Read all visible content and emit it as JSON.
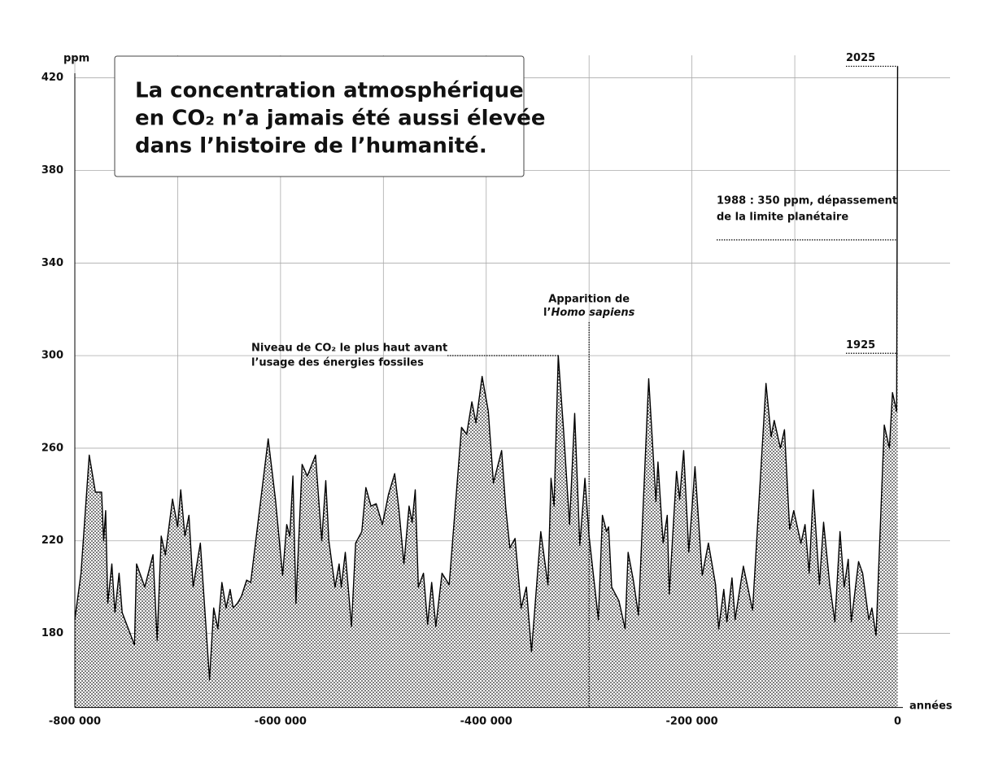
{
  "chart_data": {
    "type": "area",
    "title": [
      "La concentration atmosphérique",
      "en CO₂ n’a jamais été aussi élevée",
      "dans l’histoire de l’humanité."
    ],
    "y_label": "ppm",
    "x_label": "années",
    "color": "#000000",
    "x": [
      -800000,
      -794000,
      -786000,
      -780000,
      -774000,
      -772000,
      -770000,
      -768000,
      -764000,
      -761000,
      -757000,
      -754000,
      -742000,
      -740000,
      -732000,
      -724000,
      -720000,
      -716000,
      -712000,
      -705000,
      -700000,
      -697000,
      -693000,
      -689000,
      -685000,
      -678000,
      -669000,
      -665000,
      -661000,
      -657000,
      -653000,
      -649000,
      -646000,
      -642000,
      -638000,
      -633000,
      -629000,
      -612000,
      -605000,
      -598000,
      -594000,
      -591000,
      -588000,
      -585000,
      -579000,
      -574000,
      -566000,
      -560000,
      -556000,
      -553000,
      -547000,
      -543000,
      -541000,
      -537000,
      -531000,
      -527000,
      -521000,
      -517000,
      -512000,
      -507000,
      -501000,
      -495000,
      -489000,
      -485000,
      -480000,
      -475000,
      -472000,
      -469000,
      -466000,
      -461000,
      -457000,
      -453000,
      -449000,
      -443000,
      -436000,
      -424000,
      -419000,
      -414000,
      -410000,
      -404000,
      -398000,
      -393000,
      -385000,
      -381000,
      -377000,
      -372000,
      -366000,
      -361000,
      -356000,
      -347000,
      -340000,
      -337000,
      -334000,
      -330000,
      -325000,
      -319000,
      -314000,
      -309000,
      -304000,
      -300000,
      -291000,
      -287000,
      -283000,
      -281000,
      -278000,
      -271000,
      -265000,
      -262000,
      -257000,
      -252000,
      -242000,
      -235000,
      -233000,
      -228000,
      -224000,
      -222000,
      -215000,
      -212000,
      -208000,
      -203000,
      -197000,
      -190000,
      -184000,
      -177000,
      -174000,
      -169000,
      -166000,
      -161000,
      -158000,
      -150000,
      -141000,
      -128000,
      -123000,
      -120000,
      -114000,
      -110000,
      -105000,
      -101000,
      -94000,
      -90000,
      -86000,
      -82000,
      -76000,
      -72000,
      -66000,
      -61000,
      -56000,
      -52000,
      -48000,
      -45000,
      -38000,
      -34000,
      -28000,
      -25000,
      -21000,
      -13000,
      -8000,
      -5000,
      -1000,
      0
    ],
    "values": [
      186,
      206,
      257,
      241,
      241,
      220,
      233,
      193,
      210,
      189,
      206,
      189,
      175,
      210,
      200,
      214,
      177,
      222,
      214,
      238,
      226,
      242,
      222,
      231,
      200,
      219,
      160,
      191,
      182,
      202,
      191,
      199,
      191,
      193,
      196,
      203,
      202,
      264,
      238,
      205,
      227,
      222,
      248,
      193,
      253,
      248,
      257,
      220,
      246,
      220,
      200,
      210,
      200,
      215,
      183,
      219,
      224,
      243,
      235,
      236,
      227,
      240,
      249,
      234,
      210,
      235,
      228,
      242,
      200,
      206,
      184,
      202,
      183,
      206,
      201,
      269,
      266,
      280,
      271,
      291,
      276,
      245,
      259,
      234,
      217,
      221,
      191,
      200,
      172,
      224,
      201,
      247,
      235,
      300,
      269,
      227,
      275,
      218,
      247,
      222,
      186,
      231,
      224,
      226,
      200,
      194,
      182,
      215,
      203,
      188,
      290,
      237,
      254,
      219,
      231,
      197,
      250,
      238,
      259,
      215,
      252,
      205,
      219,
      201,
      182,
      199,
      185,
      204,
      186,
      209,
      190,
      288,
      265,
      272,
      260,
      268,
      225,
      233,
      219,
      227,
      206,
      242,
      201,
      228,
      201,
      185,
      224,
      200,
      212,
      185,
      211,
      206,
      186,
      191,
      179,
      270,
      260,
      284,
      276,
      425
    ],
    "xlim": [
      -800000,
      51000
    ],
    "ylim": [
      148,
      426
    ],
    "xticks": [
      {
        "value": -800000,
        "label": "-800 000"
      },
      {
        "value": -600000,
        "label": "-600 000"
      },
      {
        "value": -400000,
        "label": "-400 000"
      },
      {
        "value": -200000,
        "label": "-200 000"
      },
      0
    ],
    "xgrid": [
      -700000,
      -500000,
      -300000,
      -100000
    ],
    "yticks": [
      180,
      220,
      260,
      300,
      340,
      380,
      420
    ],
    "grid": true,
    "annotations": {
      "peak": {
        "lines": [
          "Niveau de CO₂ le plus haut avant",
          "l’usage des énergies fossiles"
        ],
        "x": -330000,
        "y": 300
      },
      "sapiens": {
        "line1": "Apparition de",
        "prefix": "l’",
        "italic": "Homo sapiens",
        "x": -300000
      },
      "limit": {
        "lines": [
          "1988 : 350 ppm, dépassement",
          "de la limite planétaire"
        ],
        "y": 350
      },
      "y1925": {
        "label": "1925",
        "y": 301
      },
      "y2025": {
        "label": "2025",
        "y": 425
      }
    }
  }
}
